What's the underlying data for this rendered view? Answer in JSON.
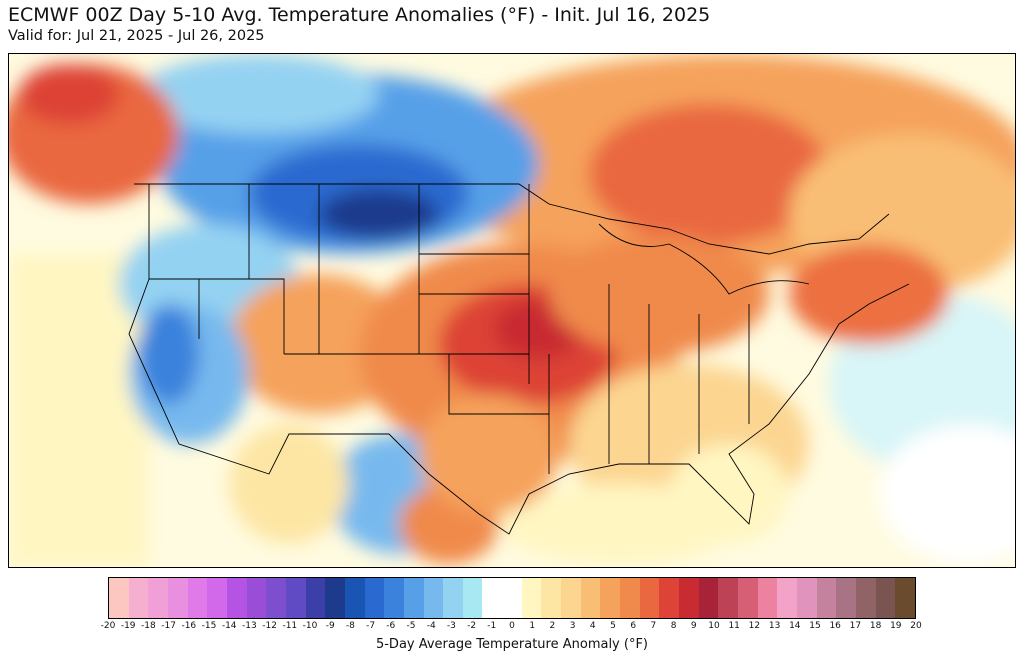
{
  "header": {
    "title": "ECMWF 00Z Day 5-10 Avg. Temperature Anomalies (°F) - Init. Jul 16, 2025",
    "subtitle": "Valid for: Jul 21, 2025 - Jul 26, 2025"
  },
  "map": {
    "region": "United States and southern Canada",
    "field": "5-Day Average Temperature Anomaly (°F)",
    "anomaly_regions": [
      {
        "area": "Northern Rockies / Montana / Alberta",
        "anomaly": -9,
        "color": "#2a5bbf"
      },
      {
        "area": "Pacific Northwest coast / British Columbia",
        "anomaly": 7,
        "color": "#e2563b"
      },
      {
        "area": "Central Plains (Kansas / Missouri)",
        "anomaly": 10,
        "color": "#c0394d"
      },
      {
        "area": "Upper Midwest / Great Lakes / Ontario",
        "anomaly": 6,
        "color": "#ef7c46"
      },
      {
        "area": "Quebec / Hudson Bay south",
        "anomaly": 5,
        "color": "#f29a55"
      },
      {
        "area": "Northeast / New England",
        "anomaly": 6,
        "color": "#ec7040"
      },
      {
        "area": "Southeast",
        "anomaly": 3,
        "color": "#fcd591"
      },
      {
        "area": "Southwest / Mexico interior",
        "anomaly": -3,
        "color": "#7cb6ec"
      },
      {
        "area": "California coast",
        "anomaly": -6,
        "color": "#3b78d6"
      },
      {
        "area": "Atlantic offshore",
        "anomaly": -1,
        "color": "#aef0f4"
      }
    ]
  },
  "colorbar": {
    "label": "5-Day Average Temperature Anomaly (°F)",
    "ticks": [
      "-20",
      "-19",
      "-18",
      "-17",
      "-16",
      "-15",
      "-14",
      "-13",
      "-12",
      "-11",
      "-10",
      "-9",
      "-8",
      "-7",
      "-6",
      "-5",
      "-4",
      "-3",
      "-2",
      "-1",
      "0",
      "1",
      "2",
      "3",
      "4",
      "5",
      "6",
      "7",
      "8",
      "9",
      "10",
      "11",
      "12",
      "13",
      "14",
      "15",
      "16",
      "17",
      "18",
      "19",
      "20"
    ],
    "colors": [
      "#fbc7c0",
      "#f6b0cf",
      "#f0a0d6",
      "#e98fdf",
      "#e07ae8",
      "#d268ea",
      "#b554e4",
      "#9a4ed8",
      "#7d4fcf",
      "#604bc4",
      "#3d3fa8",
      "#1d3a8c",
      "#1b55b3",
      "#2a6ad0",
      "#3b82dc",
      "#57a0e8",
      "#77b9ee",
      "#94d2f2",
      "#a8e8f3",
      "#ffffff",
      "#ffffff",
      "#fff6c2",
      "#fde6a4",
      "#fcd591",
      "#f9be75",
      "#f5a25c",
      "#f08a4c",
      "#e9683f",
      "#dd4336",
      "#c92b33",
      "#a82337",
      "#bd4255",
      "#d75f75",
      "#ec82a0",
      "#f3a3c8",
      "#df93bd",
      "#c5829f",
      "#a97386",
      "#906367",
      "#7a5451",
      "#6b4b2e"
    ]
  }
}
